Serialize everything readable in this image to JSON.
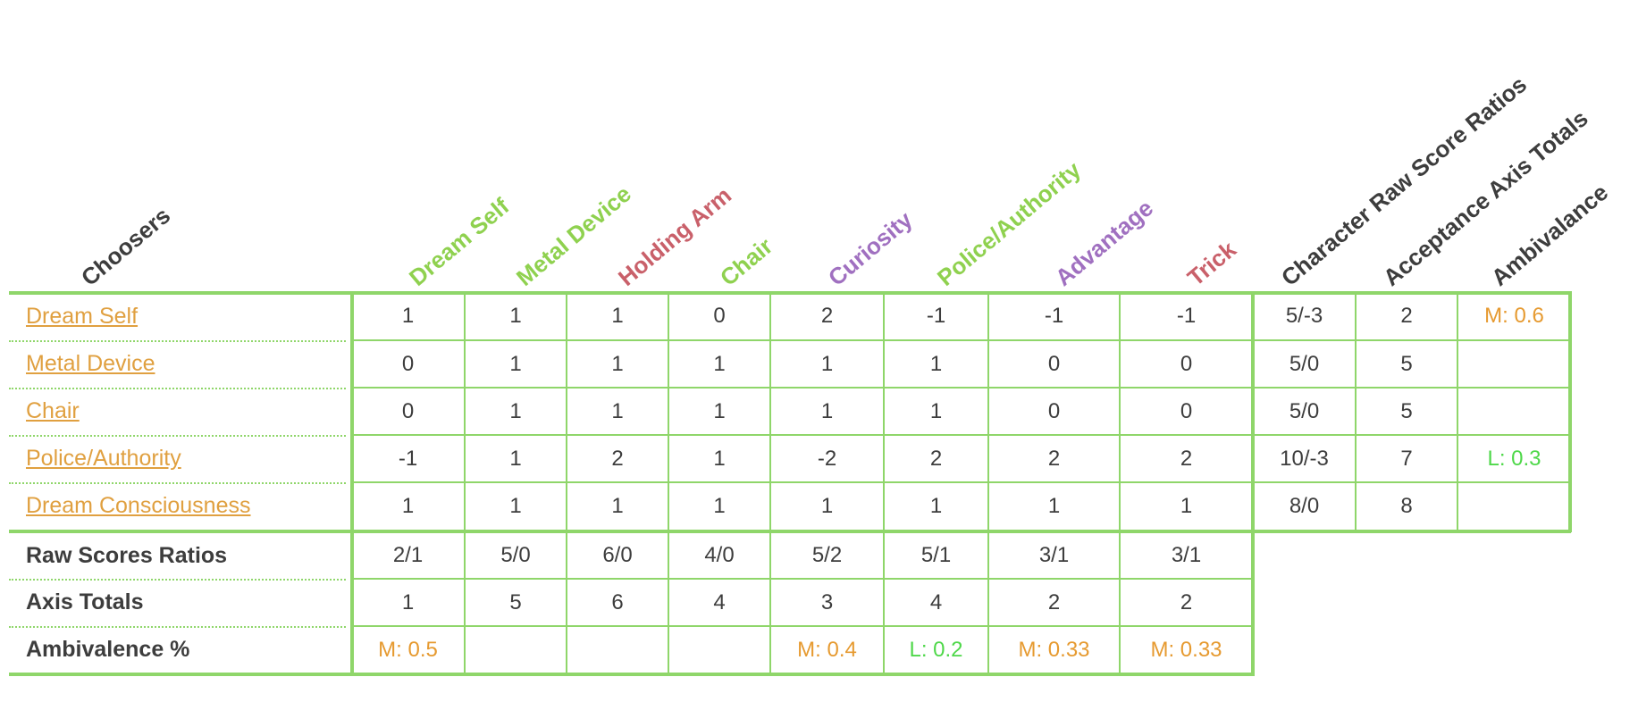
{
  "corner_header": "Choosers",
  "columns": [
    {
      "label": "Dream Self",
      "color": "#8fd14f"
    },
    {
      "label": "Metal Device",
      "color": "#8fd14f"
    },
    {
      "label": "Holding Arm",
      "color": "#c9606a"
    },
    {
      "label": "Chair",
      "color": "#8fd14f"
    },
    {
      "label": "Curiosity",
      "color": "#a070c0"
    },
    {
      "label": "Police/Authority",
      "color": "#8fd14f"
    },
    {
      "label": "Advantage",
      "color": "#a070c0"
    },
    {
      "label": "Trick",
      "color": "#c9606a"
    }
  ],
  "summary_columns": [
    {
      "label": "Character Raw Score Ratios",
      "color": "#3d3d3d"
    },
    {
      "label": "Acceptance Axis Totals",
      "color": "#3d3d3d"
    },
    {
      "label": "Ambivalance",
      "color": "#3d3d3d"
    }
  ],
  "rows": [
    {
      "label": "Dream Self",
      "values": [
        "1",
        "1",
        "1",
        "0",
        "2",
        "-1",
        "-1",
        "-1"
      ],
      "ratio": "5/-3",
      "total": "2",
      "ambivalence": "M: 0.6",
      "amb_type": "M"
    },
    {
      "label": "Metal Device",
      "values": [
        "0",
        "1",
        "1",
        "1",
        "1",
        "1",
        "0",
        "0"
      ],
      "ratio": "5/0",
      "total": "5",
      "ambivalence": "",
      "amb_type": ""
    },
    {
      "label": "Chair",
      "values": [
        "0",
        "1",
        "1",
        "1",
        "1",
        "1",
        "0",
        "0"
      ],
      "ratio": "5/0",
      "total": "5",
      "ambivalence": "",
      "amb_type": ""
    },
    {
      "label": "Police/Authority",
      "values": [
        "-1",
        "1",
        "2",
        "1",
        "-2",
        "2",
        "2",
        "2"
      ],
      "ratio": "10/-3",
      "total": "7",
      "ambivalence": "L: 0.3",
      "amb_type": "L"
    },
    {
      "label": "Dream Consciousness",
      "values": [
        "1",
        "1",
        "1",
        "1",
        "1",
        "1",
        "1",
        "1"
      ],
      "ratio": "8/0",
      "total": "8",
      "ambivalence": "",
      "amb_type": ""
    }
  ],
  "footer_rows": [
    {
      "label": "Raw Scores Ratios",
      "values": [
        "2/1",
        "5/0",
        "6/0",
        "4/0",
        "5/2",
        "5/1",
        "3/1",
        "3/1"
      ],
      "types": [
        "",
        "",
        "",
        "",
        "",
        "",
        "",
        ""
      ]
    },
    {
      "label": "Axis Totals",
      "values": [
        "1",
        "5",
        "6",
        "4",
        "3",
        "4",
        "2",
        "2"
      ],
      "types": [
        "",
        "",
        "",
        "",
        "",
        "",
        "",
        ""
      ]
    },
    {
      "label": "Ambivalence %",
      "values": [
        "M: 0.5",
        "",
        "",
        "",
        "M: 0.4",
        "L: 0.2",
        "M: 0.33",
        "M: 0.33"
      ],
      "types": [
        "M",
        "",
        "",
        "",
        "M",
        "L",
        "M",
        "M"
      ]
    }
  ]
}
